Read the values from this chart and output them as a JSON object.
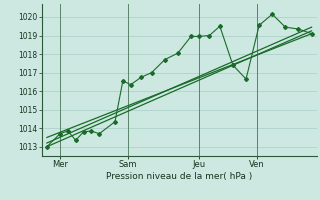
{
  "background_color": "#cce8e0",
  "grid_color": "#aacec8",
  "line_color": "#1a6b2a",
  "vline_color": "#4a7a5a",
  "xlabel": "Pression niveau de la mer( hPa )",
  "ylim": [
    1012.5,
    1020.7
  ],
  "yticks": [
    1013,
    1014,
    1015,
    1016,
    1017,
    1018,
    1019,
    1020
  ],
  "day_labels": [
    "Mer",
    "Sam",
    "Jeu",
    "Ven"
  ],
  "day_positions": [
    0.07,
    0.33,
    0.6,
    0.82
  ],
  "xlim": [
    0.0,
    1.05
  ],
  "jagged_x": [
    0.02,
    0.07,
    0.1,
    0.13,
    0.16,
    0.19,
    0.22,
    0.28,
    0.31,
    0.34,
    0.38,
    0.42,
    0.47,
    0.52,
    0.57,
    0.6,
    0.64,
    0.68,
    0.73,
    0.78,
    0.83,
    0.88,
    0.93,
    0.98,
    1.03
  ],
  "jagged_y": [
    1013.0,
    1013.7,
    1013.85,
    1013.35,
    1013.8,
    1013.85,
    1013.7,
    1014.35,
    1016.55,
    1016.35,
    1016.75,
    1017.0,
    1017.7,
    1018.05,
    1018.95,
    1018.95,
    1019.0,
    1019.5,
    1017.4,
    1016.65,
    1019.55,
    1020.15,
    1019.45,
    1019.35,
    1019.1
  ],
  "trend1_x": [
    0.02,
    1.03
  ],
  "trend1_y": [
    1013.0,
    1019.25
  ],
  "trend2_x": [
    0.02,
    1.03
  ],
  "trend2_y": [
    1013.5,
    1019.1
  ],
  "trend3_x": [
    0.02,
    1.03
  ],
  "trend3_y": [
    1013.2,
    1019.45
  ]
}
